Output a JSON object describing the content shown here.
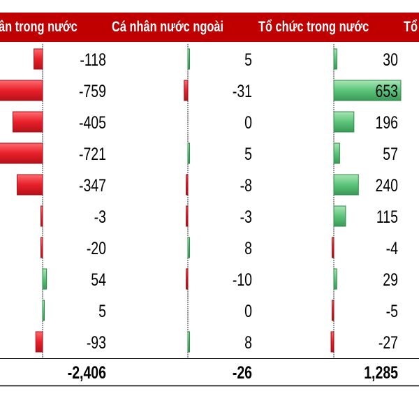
{
  "header": {
    "col1": "ân trong nước",
    "col2": "Cá nhân nước ngoài",
    "col3": "Tổ chức trong nước",
    "col4": "Tổ"
  },
  "chart_data": {
    "type": "table",
    "columns": [
      "ân trong nước",
      "Cá nhân nước ngoài",
      "Tổ chức trong nước",
      "Tổ"
    ],
    "series": [
      {
        "name": "ân trong nước",
        "values": [
          -118,
          -759,
          -405,
          -721,
          -347,
          -3,
          -20,
          54,
          5,
          -93
        ],
        "total": "-2,406"
      },
      {
        "name": "Cá nhân nước ngoài",
        "values": [
          5,
          -31,
          0,
          5,
          -8,
          -3,
          8,
          -10,
          0,
          8
        ],
        "total": "-26"
      },
      {
        "name": "Tổ chức trong nước",
        "values": [
          30,
          653,
          196,
          57,
          240,
          115,
          -4,
          29,
          -5,
          -27
        ],
        "total": "1,285"
      }
    ],
    "colors": {
      "positive": "#5cc47a",
      "negative": "#e8202a",
      "header": "#c00000"
    }
  }
}
